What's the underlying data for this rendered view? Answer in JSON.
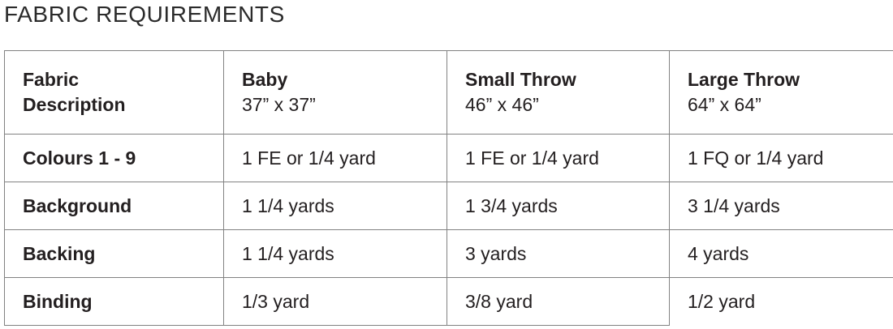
{
  "title": "FABRIC REQUIREMENTS",
  "table": {
    "header": [
      {
        "line1": "Fabric",
        "line2": "Description"
      },
      {
        "line1": "Baby",
        "line2": "37” x 37”"
      },
      {
        "line1": "Small Throw",
        "line2": "46” x 46”"
      },
      {
        "line1": "Large Throw",
        "line2": "64” x 64”"
      }
    ],
    "rows": [
      {
        "label": "Colours 1 - 9",
        "values": [
          "1 FE or 1/4 yard",
          "1 FE or 1/4 yard",
          "1 FQ or 1/4 yard"
        ]
      },
      {
        "label": "Background",
        "values": [
          "1 1/4 yards",
          "1 3/4 yards",
          "3 1/4 yards"
        ]
      },
      {
        "label": "Backing",
        "values": [
          "1 1/4 yards",
          "3 yards",
          "4 yards"
        ]
      },
      {
        "label": "Binding",
        "values": [
          "1/3 yard",
          "3/8 yard",
          "1/2 yard"
        ]
      }
    ],
    "colors": {
      "text": "#231f20",
      "border": "#828282",
      "background": "#ffffff"
    }
  }
}
